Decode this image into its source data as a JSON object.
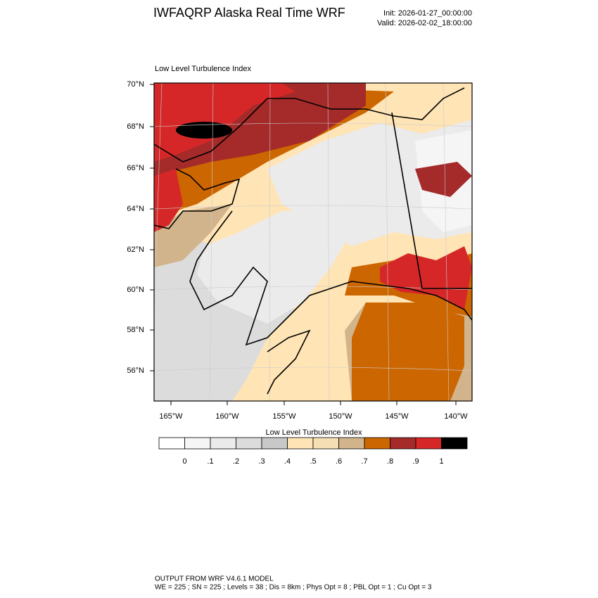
{
  "header": {
    "title": "IWFAQRP Alaska Real Time WRF",
    "init": "Init: 2026-01-27_00:00:00",
    "valid": "Valid: 2026-02-02_18:00:00"
  },
  "map": {
    "title": "Low Level Turbulence Index",
    "lat_labels": [
      "70°N",
      "68°N",
      "66°N",
      "64°N",
      "62°N",
      "60°N",
      "58°N",
      "56°N"
    ],
    "lon_labels": [
      "165°W",
      "160°W",
      "155°W",
      "150°W",
      "145°W",
      "140°W"
    ]
  },
  "colorbar": {
    "title": "Low Level Turbulence Index",
    "colors": [
      "#ffffff",
      "#f5f5f5",
      "#ebebeb",
      "#dcdcdc",
      "#c8c8c8",
      "#ffe4b5",
      "#f5deb3",
      "#d2b48c",
      "#cc6600",
      "#a52a2a",
      "#d62728",
      "#000000"
    ],
    "labels": [
      "0",
      ".1",
      ".2",
      ".3",
      ".4",
      ".5",
      ".6",
      ".7",
      ".8",
      ".9",
      "1"
    ]
  },
  "footer": {
    "line1": "OUTPUT FROM WRF V4.6.1 MODEL",
    "line2": "WE = 225 ; SN = 225 ; Levels = 38 ; Dis = 8km ; Phys Opt = 8 ; PBL Opt = 1 ; Cu Opt = 3"
  }
}
